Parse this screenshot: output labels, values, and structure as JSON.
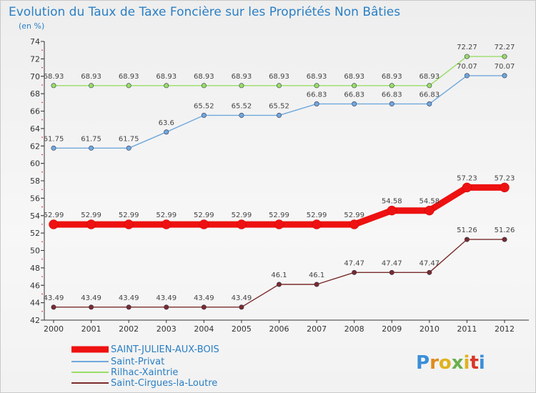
{
  "chart_data": {
    "type": "line",
    "title": "Evolution du Taux de Taxe Foncière sur les Propriétés Non Bâties",
    "subtitle": "(en %)",
    "xlabel": "",
    "ylabel": "",
    "x": [
      "2000",
      "2001",
      "2002",
      "2003",
      "2004",
      "2005",
      "2006",
      "2007",
      "2008",
      "2009",
      "2010",
      "2011",
      "2012"
    ],
    "ylim": [
      42,
      74
    ],
    "ytick_step": 2,
    "grid": false,
    "legend_position": "bottom-left",
    "series": [
      {
        "name": "SAINT-JULIEN-AUX-BOIS",
        "color": "#ee1111",
        "width": "thick",
        "values": [
          52.99,
          52.99,
          52.99,
          52.99,
          52.99,
          52.99,
          52.99,
          52.99,
          52.99,
          54.58,
          54.58,
          57.23,
          57.23
        ],
        "labels": [
          "52.99",
          "52.99",
          "52.99",
          "52.99",
          "52.99",
          "52.99",
          "52.99",
          "52.99",
          "52.99",
          "54.58",
          "54.58",
          "57.23",
          "57.23"
        ]
      },
      {
        "name": "Saint-Privat",
        "color": "#6fa8dc",
        "width": "thin",
        "values": [
          61.75,
          61.75,
          61.75,
          63.6,
          65.52,
          65.52,
          65.52,
          66.83,
          66.83,
          66.83,
          66.83,
          70.07,
          70.07
        ],
        "labels": [
          "61.75",
          "61.75",
          "61.75",
          "63.6",
          "65.52",
          "65.52",
          "65.52",
          "66.83",
          "66.83",
          "66.83",
          "66.83",
          "70.07",
          "70.07"
        ]
      },
      {
        "name": "Rilhac-Xaintrie",
        "color": "#99dd66",
        "width": "thin",
        "values": [
          68.93,
          68.93,
          68.93,
          68.93,
          68.93,
          68.93,
          68.93,
          68.93,
          68.93,
          68.93,
          68.93,
          72.27,
          72.27
        ],
        "labels": [
          "68.93",
          "68.93",
          "68.93",
          "68.93",
          "68.93",
          "68.93",
          "68.93",
          "68.93",
          "68.93",
          "68.93",
          "68.93",
          "72.27",
          "72.27"
        ]
      },
      {
        "name": "Saint-Cirgues-la-Loutre",
        "color": "#7a2b2b",
        "width": "thin",
        "values": [
          43.49,
          43.49,
          43.49,
          43.49,
          43.49,
          43.49,
          46.1,
          46.1,
          47.47,
          47.47,
          47.47,
          51.26,
          51.26
        ],
        "labels": [
          "43.49",
          "43.49",
          "43.49",
          "43.49",
          "43.49",
          "43.49",
          "46.1",
          "46.1",
          "47.47",
          "47.47",
          "47.47",
          "51.26",
          "51.26"
        ]
      }
    ]
  },
  "logo": {
    "letters": [
      "P",
      "r",
      "o",
      "x",
      "i",
      "t",
      "i"
    ],
    "colors": [
      "#3a8fd8",
      "#e08a1e",
      "#e0b21e",
      "#6ab04c",
      "#e0b21e",
      "#d8362a",
      "#3a8fd8"
    ]
  }
}
